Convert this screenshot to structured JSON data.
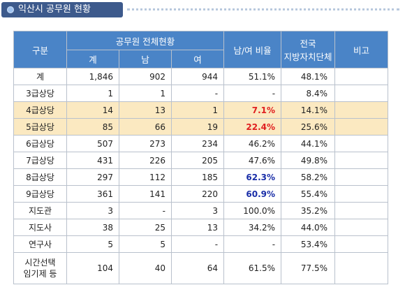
{
  "title": "익산시 공무원 현황",
  "headers": {
    "category": "구분",
    "status_group": "공무원 전체현황",
    "total": "계",
    "male": "남",
    "female": "여",
    "ratio": "남/여 비율",
    "national_line1": "전국",
    "national_line2": "지방자치단체",
    "remarks": "비고"
  },
  "rows": [
    {
      "category": "계",
      "total": "1,846",
      "male": "902",
      "female": "944",
      "ratio": "51.1%",
      "national": "48.1%",
      "remarks": ""
    },
    {
      "category": "3급상당",
      "total": "1",
      "male": "1",
      "female": "-",
      "ratio": "-",
      "national": "8.4%",
      "remarks": ""
    },
    {
      "category": "4급상당",
      "total": "14",
      "male": "13",
      "female": "1",
      "ratio": "7.1%",
      "national": "14.1%",
      "remarks": ""
    },
    {
      "category": "5급상당",
      "total": "85",
      "male": "66",
      "female": "19",
      "ratio": "22.4%",
      "national": "25.6%",
      "remarks": ""
    },
    {
      "category": "6급상당",
      "total": "507",
      "male": "273",
      "female": "234",
      "ratio": "46.2%",
      "national": "44.1%",
      "remarks": ""
    },
    {
      "category": "7급상당",
      "total": "431",
      "male": "226",
      "female": "205",
      "ratio": "47.6%",
      "national": "49.8%",
      "remarks": ""
    },
    {
      "category": "8급상당",
      "total": "297",
      "male": "112",
      "female": "185",
      "ratio": "62.3%",
      "national": "58.2%",
      "remarks": ""
    },
    {
      "category": "9급상당",
      "total": "361",
      "male": "141",
      "female": "220",
      "ratio": "60.9%",
      "national": "55.4%",
      "remarks": ""
    },
    {
      "category": "지도관",
      "total": "3",
      "male": "-",
      "female": "3",
      "ratio": "100.0%",
      "national": "35.2%",
      "remarks": ""
    },
    {
      "category": "지도사",
      "total": "38",
      "male": "25",
      "female": "13",
      "ratio": "34.2%",
      "national": "44.0%",
      "remarks": ""
    },
    {
      "category": "연구사",
      "total": "5",
      "male": "5",
      "female": "-",
      "ratio": "-",
      "national": "53.4%",
      "remarks": ""
    },
    {
      "category_line1": "시간선택",
      "category_line2": "임기제 등",
      "total": "104",
      "male": "40",
      "female": "64",
      "ratio": "61.5%",
      "national": "77.5%",
      "remarks": ""
    }
  ],
  "colors": {
    "header_bg": "#4a84c7",
    "highlight_row_bg": "#fbe9c1",
    "red_ratio": "#e02020",
    "blue_ratio": "#1a2ea8",
    "title_bg": "#3d5a8c"
  }
}
